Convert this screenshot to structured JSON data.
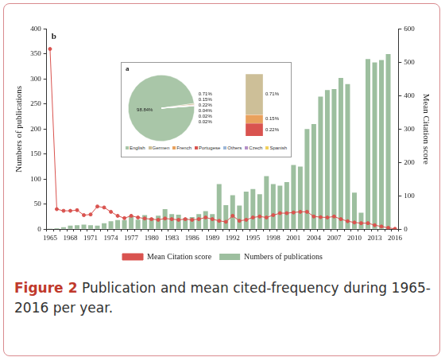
{
  "figure": {
    "label": "Figure 2",
    "caption": "Publication and mean cited-frequency during 1965-2016 per year."
  },
  "chart_data": [
    {
      "type": "bar",
      "annotations": [
        "b"
      ],
      "categories": [
        "1965",
        null,
        null,
        "1968",
        null,
        null,
        "1971",
        null,
        null,
        "1974",
        null,
        null,
        "1977",
        null,
        null,
        "1980",
        null,
        null,
        "1983",
        null,
        null,
        "1986",
        null,
        null,
        "1989",
        null,
        null,
        "1992",
        null,
        null,
        "1995",
        null,
        null,
        "1998",
        null,
        null,
        "2001",
        null,
        null,
        "2004",
        null,
        null,
        "2007",
        null,
        null,
        "2010",
        null,
        null,
        "2013",
        null,
        null,
        "2016"
      ],
      "series": [
        {
          "name": "Numbers of publications",
          "type": "bar",
          "color": "#9dbf9f",
          "values": [
            1,
            2,
            4,
            7,
            8,
            9,
            8,
            7,
            12,
            16,
            18,
            18,
            27,
            19,
            28,
            22,
            27,
            40,
            30,
            29,
            22,
            24,
            30,
            36,
            30,
            90,
            48,
            68,
            47,
            75,
            80,
            70,
            106,
            90,
            87,
            94,
            128,
            125,
            200,
            210,
            265,
            278,
            280,
            302,
            290,
            73,
            33,
            340,
            333,
            338,
            350,
            0
          ]
        },
        {
          "name": "Mean Citation score",
          "type": "line",
          "axis": "y2",
          "color": "#d9534f",
          "marker": "circle",
          "line_style": "solid",
          "values": [
            540,
            60,
            55,
            55,
            57,
            42,
            44,
            68,
            65,
            52,
            40,
            33,
            40,
            35,
            32,
            30,
            28,
            32,
            30,
            28,
            30,
            28,
            30,
            35,
            30,
            25,
            22,
            40,
            25,
            28,
            35,
            38,
            35,
            42,
            48,
            48,
            50,
            52,
            52,
            38,
            36,
            35,
            38,
            30,
            24,
            20,
            18,
            18,
            12,
            8,
            4,
            1
          ]
        }
      ],
      "y_label": "Numbers of publications",
      "y2_label": "Mean Citation score",
      "ylim": [
        0,
        400
      ],
      "yticks": [
        0,
        50,
        100,
        150,
        200,
        250,
        300,
        350,
        400
      ],
      "y2lim": [
        0,
        600
      ],
      "y2ticks": [
        0,
        100,
        200,
        300,
        400,
        500,
        600
      ],
      "grid": false,
      "legend": "bottom"
    },
    {
      "type": "pie",
      "annotations": [
        "a"
      ],
      "categories": [
        "English",
        "Germen",
        "French",
        "Portugese",
        "Others",
        "Czech",
        "Spanish"
      ],
      "values": [
        98.84,
        0.71,
        0.15,
        0.22,
        0.04,
        0.02,
        0.02
      ],
      "value_labels": [
        "98.84%",
        "0.71%",
        "0.15%",
        "0.22%",
        "0.04%",
        "0.02%",
        "0.02%"
      ],
      "colors": [
        "#a9c6a8",
        "#cdbf98",
        "#e9a15d",
        "#d9534f",
        "#9db7d8",
        "#b48fc7",
        "#f2d15c"
      ],
      "data_labels": true,
      "legend": "bottom"
    },
    {
      "type": "bar",
      "stacked": true,
      "categories": [
        null
      ],
      "series": [
        {
          "name": "Portugese",
          "color": "#d9534f",
          "values": [
            0.22
          ],
          "value_labels": [
            "0.22%"
          ]
        },
        {
          "name": "French",
          "color": "#e9a15d",
          "values": [
            0.15
          ],
          "value_labels": [
            "0.15%"
          ]
        },
        {
          "name": "Germen",
          "color": "#cdbf98",
          "values": [
            0.71
          ],
          "value_labels": [
            "0.71%"
          ]
        }
      ],
      "ylim": [
        0,
        1.08
      ],
      "data_labels": true,
      "tick_labels": false
    }
  ]
}
